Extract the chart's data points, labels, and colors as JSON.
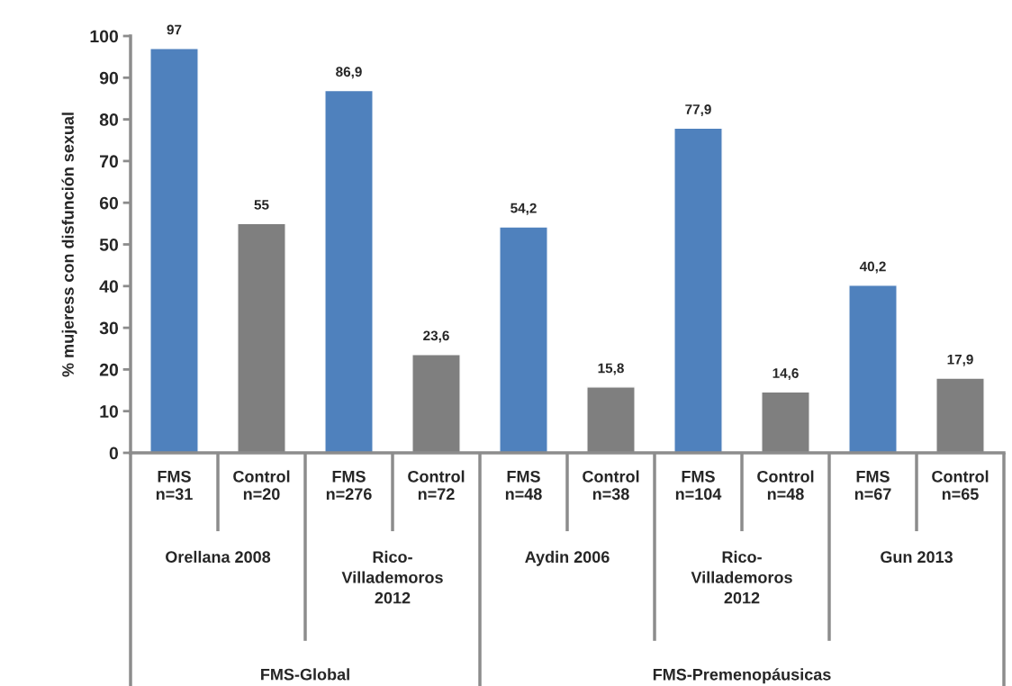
{
  "chart_data": {
    "type": "bar",
    "ylabel": "% mujeress con disfunción sexual",
    "categories": [
      "FMS\nn=31",
      "Control\nn=20",
      "FMS\nn=276",
      "Control\nn=72",
      "FMS\nn=48",
      "Control\nn=38",
      "FMS\nn=104",
      "Control\nn=48",
      "FMS\nn=67",
      "Control\nn=65"
    ],
    "values": [
      97,
      55,
      86.9,
      23.6,
      54.2,
      15.8,
      77.9,
      14.6,
      40.2,
      17.9
    ],
    "value_labels": [
      "97",
      "55",
      "86,9",
      "23,6",
      "54,2",
      "15,8",
      "77,9",
      "14,6",
      "40,2",
      "17,9"
    ],
    "colors": [
      "#4f81bd",
      "#7f7f7f",
      "#4f81bd",
      "#7f7f7f",
      "#4f81bd",
      "#7f7f7f",
      "#4f81bd",
      "#7f7f7f",
      "#4f81bd",
      "#7f7f7f"
    ],
    "ylim": [
      0,
      100
    ],
    "yticks": [
      0,
      10,
      20,
      30,
      40,
      50,
      60,
      70,
      80,
      90,
      100
    ],
    "grid": false,
    "legend": false,
    "annotations": [
      "Orellana 2008",
      "Rico-\nVillademoros\n2012",
      "Aydin 2006",
      "Rico-\nVillademoros\n2012",
      "Gun 2013",
      "FMS-Global",
      "FMS-Premenopáusicas"
    ]
  }
}
